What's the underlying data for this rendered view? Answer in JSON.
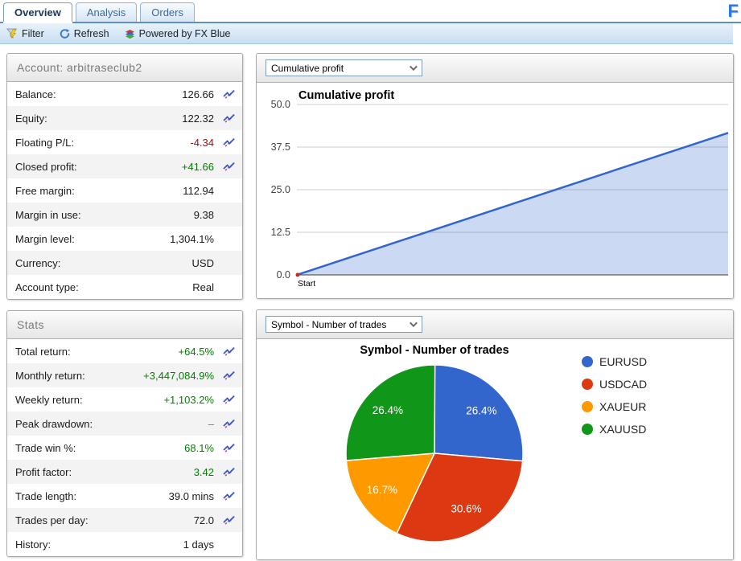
{
  "brand": {
    "logo_letter": "F"
  },
  "tabs": {
    "items": [
      {
        "label": "Overview",
        "active": true
      },
      {
        "label": "Analysis",
        "active": false
      },
      {
        "label": "Orders",
        "active": false
      }
    ]
  },
  "toolbar": {
    "filter_label": "Filter",
    "refresh_label": "Refresh",
    "powered_label": "Powered by FX Blue"
  },
  "panels": {
    "account": {
      "title": "Account: arbitraseclub2",
      "rows": [
        {
          "label": "Balance:",
          "value": "126.66",
          "value_color": "default",
          "sparkline": true
        },
        {
          "label": "Equity:",
          "value": "122.32",
          "value_color": "default",
          "sparkline": true
        },
        {
          "label": "Floating P/L:",
          "value": "-4.34",
          "value_color": "negative",
          "sparkline": true
        },
        {
          "label": "Closed profit:",
          "value": "+41.66",
          "value_color": "positive",
          "sparkline": true
        },
        {
          "label": "Free margin:",
          "value": "112.94",
          "value_color": "default",
          "sparkline": false
        },
        {
          "label": "Margin in use:",
          "value": "9.38",
          "value_color": "default",
          "sparkline": false
        },
        {
          "label": "Margin level:",
          "value": "1,304.1%",
          "value_color": "default",
          "sparkline": false
        },
        {
          "label": "Currency:",
          "value": "USD",
          "value_color": "default",
          "sparkline": false
        },
        {
          "label": "Account type:",
          "value": "Real",
          "value_color": "default",
          "sparkline": false
        }
      ]
    },
    "stats": {
      "title": "Stats",
      "rows": [
        {
          "label": "Total return:",
          "value": "+64.5%",
          "value_color": "positive",
          "sparkline": true
        },
        {
          "label": "Monthly return:",
          "value": "+3,447,084.9%",
          "value_color": "positive",
          "sparkline": true
        },
        {
          "label": "Weekly return:",
          "value": "+1,103.2%",
          "value_color": "positive",
          "sparkline": true
        },
        {
          "label": "Peak drawdown:",
          "value": "–",
          "value_color": "muted",
          "sparkline": true
        },
        {
          "label": "Trade win %:",
          "value": "68.1%",
          "value_color": "positive",
          "sparkline": true
        },
        {
          "label": "Profit factor:",
          "value": "3.42",
          "value_color": "positive",
          "sparkline": true
        },
        {
          "label": "Trade length:",
          "value": "39.0 mins",
          "value_color": "default",
          "sparkline": true
        },
        {
          "label": "Trades per day:",
          "value": "72.0",
          "value_color": "default",
          "sparkline": true
        },
        {
          "label": "History:",
          "value": "1 days",
          "value_color": "default",
          "sparkline": false
        }
      ]
    },
    "profit_chart": {
      "dropdown_value": "Cumulative profit"
    },
    "symbol_chart": {
      "dropdown_value": "Symbol - Number of trades"
    }
  },
  "chart_data": [
    {
      "type": "area",
      "title": "Cumulative profit",
      "x_labels": [
        "Start"
      ],
      "values": [
        0,
        41.66
      ],
      "ylim": [
        0,
        50
      ],
      "yticks": [
        0,
        12.5,
        25,
        37.5,
        50
      ],
      "grid": true,
      "legend": "none",
      "line_color": "#3366cc",
      "fill_color": "#3366cc",
      "fill_opacity": 0.25,
      "start_dot_color": "#cc2a1d"
    },
    {
      "type": "pie",
      "title": "Symbol - Number of trades",
      "labels": [
        "EURUSD",
        "USDCAD",
        "XAUEUR",
        "XAUUSD"
      ],
      "values": [
        26.4,
        30.6,
        16.7,
        26.4
      ],
      "slice_labels": [
        "26.4%",
        "30.6%",
        "16.7%",
        "26.4%"
      ],
      "colors": [
        "#3366CC",
        "#DC3912",
        "#FF9900",
        "#109618"
      ],
      "legend_position": "right"
    }
  ]
}
